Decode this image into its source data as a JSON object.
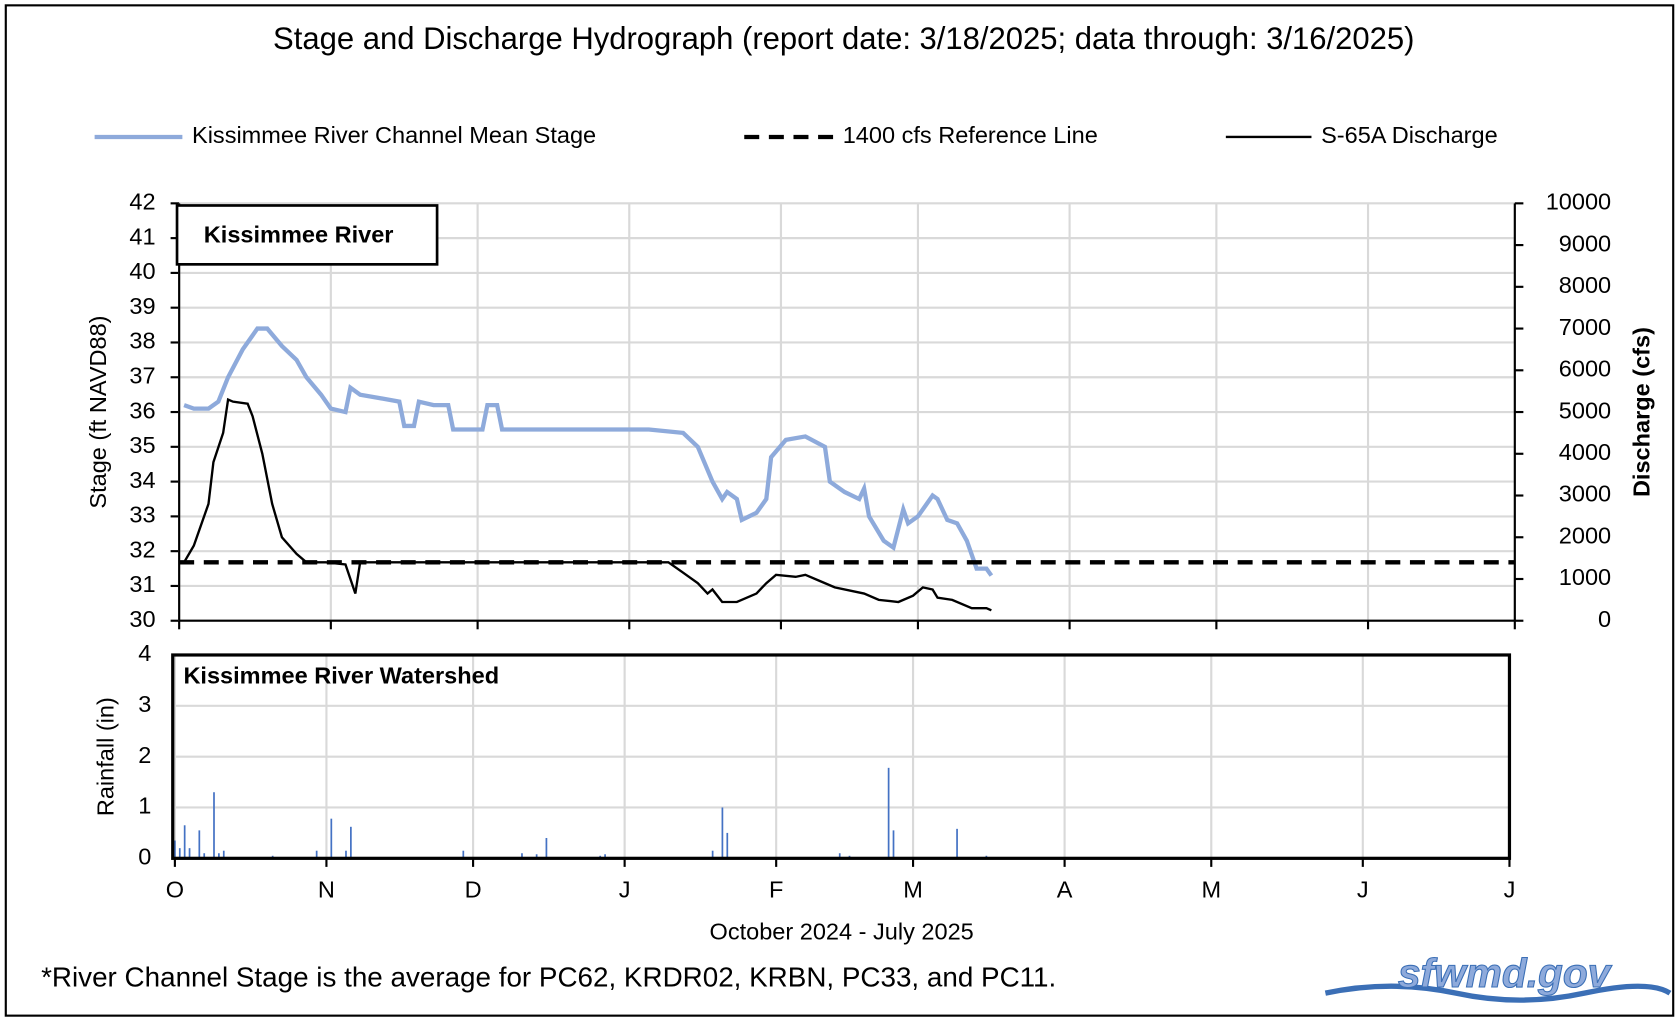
{
  "chart_data": [
    {
      "type": "line",
      "title": "Stage and Discharge Hydrograph  (report date: 3/18/2025; data through:  3/16/2025)",
      "inset_label": "Kissimmee  River",
      "ylabel": "Stage  (ft NAVD88)",
      "y2label": "Discharge (cfs)",
      "ylim": [
        30,
        42
      ],
      "yticks": [
        30,
        31,
        32,
        33,
        34,
        35,
        36,
        37,
        38,
        39,
        40,
        41,
        42
      ],
      "y2lim": [
        0,
        10000
      ],
      "y2ticks": [
        0,
        1000,
        2000,
        3000,
        4000,
        5000,
        6000,
        7000,
        8000,
        9000,
        10000
      ],
      "xlim": [
        0,
        273
      ],
      "grid": true,
      "legend": "top",
      "series": [
        {
          "name": "Kissimmee River Channel Mean Stage",
          "color": "#8eaadb",
          "line_style": "solid",
          "x": [
            1,
            3,
            6,
            8,
            10,
            13,
            16,
            18,
            21,
            24,
            26,
            29,
            31,
            34,
            35,
            37,
            41,
            45,
            46,
            48,
            49,
            52,
            55,
            56,
            62,
            63,
            65,
            66,
            96,
            103,
            106,
            109,
            111,
            112,
            114,
            115,
            118,
            120,
            121,
            124,
            128,
            132,
            133,
            136,
            139,
            140,
            141,
            144,
            146,
            148,
            149,
            151,
            154,
            155,
            157,
            159,
            161,
            163,
            165,
            166
          ],
          "values": [
            36.2,
            36.1,
            36.1,
            36.3,
            37.0,
            37.8,
            38.4,
            38.4,
            37.9,
            37.5,
            37.0,
            36.5,
            36.1,
            36.0,
            36.7,
            36.5,
            36.4,
            36.3,
            35.6,
            35.6,
            36.3,
            36.2,
            36.2,
            35.5,
            35.5,
            36.2,
            36.2,
            35.5,
            35.5,
            35.4,
            35.0,
            34.0,
            33.5,
            33.7,
            33.5,
            32.9,
            33.1,
            33.5,
            34.7,
            35.2,
            35.3,
            35.0,
            34.0,
            33.7,
            33.5,
            33.8,
            33.0,
            32.3,
            32.1,
            33.2,
            32.8,
            33.0,
            33.6,
            33.5,
            32.9,
            32.8,
            32.3,
            31.5,
            31.5,
            31.3
          ]
        },
        {
          "name": "1400 cfs Reference Line",
          "color": "#000000",
          "line_style": "dashed",
          "axis": "y2",
          "x": [
            0,
            273
          ],
          "values": [
            1400,
            1400
          ]
        },
        {
          "name": "S-65A Discharge",
          "color": "#000000",
          "line_style": "solid",
          "axis": "y2",
          "x": [
            1,
            3,
            6,
            7,
            9,
            10,
            11,
            14,
            15,
            17,
            19,
            21,
            24,
            26,
            30,
            34,
            36,
            37,
            52,
            61,
            100,
            103,
            106,
            108,
            109,
            111,
            114,
            118,
            120,
            122,
            126,
            128,
            131,
            134,
            140,
            143,
            147,
            150,
            152,
            154,
            155,
            158,
            162,
            165,
            166
          ],
          "values": [
            1400,
            1800,
            2800,
            3800,
            4500,
            5300,
            5250,
            5200,
            4900,
            4000,
            2800,
            2000,
            1600,
            1400,
            1400,
            1350,
            650,
            1400,
            1400,
            1400,
            1400,
            1150,
            900,
            650,
            750,
            450,
            450,
            650,
            900,
            1100,
            1050,
            1100,
            950,
            800,
            650,
            500,
            450,
            600,
            800,
            750,
            550,
            500,
            300,
            300,
            250
          ]
        }
      ]
    },
    {
      "type": "bar",
      "inset_label": "Kissimmee  River Watershed",
      "ylabel": "Rainfall  (in)",
      "xlabel": "October 2024 - July 2025",
      "ylim": [
        0,
        4
      ],
      "yticks": [
        0,
        1,
        2,
        3,
        4
      ],
      "xlim": [
        0,
        273
      ],
      "xticks": [
        {
          "value": 0,
          "label": "O"
        },
        {
          "value": 31,
          "label": "N"
        },
        {
          "value": 61,
          "label": "D"
        },
        {
          "value": 92,
          "label": "J"
        },
        {
          "value": 123,
          "label": "F"
        },
        {
          "value": 151,
          "label": "M"
        },
        {
          "value": 182,
          "label": "A"
        },
        {
          "value": 212,
          "label": "M"
        },
        {
          "value": 243,
          "label": "J"
        },
        {
          "value": 273,
          "label": "J"
        }
      ],
      "grid": true,
      "color": "#4472c4",
      "x": [
        0,
        1,
        2,
        3,
        5,
        6,
        8,
        9,
        10,
        20,
        29,
        32,
        35,
        36,
        59,
        71,
        74,
        76,
        87,
        88,
        110,
        112,
        113,
        136,
        138,
        146,
        147,
        160,
        166
      ],
      "values": [
        0.35,
        0.2,
        0.65,
        0.2,
        0.55,
        0.1,
        1.3,
        0.1,
        0.15,
        0.05,
        0.15,
        0.78,
        0.15,
        0.62,
        0.15,
        0.1,
        0.08,
        0.4,
        0.05,
        0.08,
        0.15,
        1.0,
        0.5,
        0.1,
        0.05,
        1.78,
        0.55,
        0.58,
        0.05
      ]
    }
  ],
  "footnote": "*River Channel Stage is the average for PC62, KRDR02, KRBN, PC33, and PC11.",
  "logo": "sfwmd.gov"
}
